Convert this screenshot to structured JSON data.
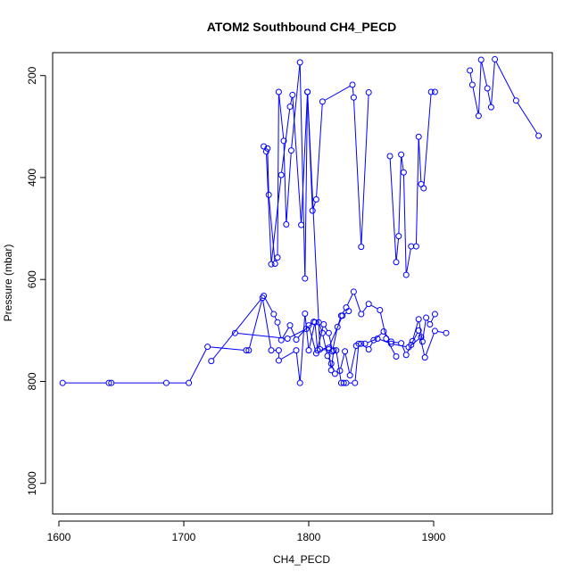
{
  "chart_data": {
    "type": "line",
    "title": "ATOM2 Southbound CH4_PECD",
    "xlabel": "CH4_PECD",
    "ylabel": "Pressure (mbar)",
    "xlim": [
      1595,
      1995
    ],
    "ylim": [
      1060,
      155
    ],
    "y_reversed": true,
    "x_ticks": [
      1600,
      1700,
      1800,
      1900
    ],
    "y_ticks": [
      200,
      400,
      600,
      800,
      1000
    ],
    "grid": false,
    "legend": "none",
    "colors": {
      "series": "#0000ff"
    },
    "marker": "open-circle",
    "series": [
      {
        "x": [
          1603,
          1640,
          1642,
          1686,
          1704,
          1719,
          1750,
          1752,
          1763,
          1770,
          1776,
          1776,
          1790,
          1793,
          1797,
          1800,
          1805,
          1807,
          1816,
          1818,
          1820,
          1822,
          1826,
          1828,
          1830,
          1837,
          1840,
          1845,
          1855,
          1866,
          1880,
          1890
        ],
        "y": [
          803,
          803,
          803,
          803,
          803,
          732,
          739,
          739,
          636,
          739,
          739,
          759,
          739,
          803,
          667,
          739,
          684,
          739,
          737,
          778,
          739,
          739,
          803,
          803,
          803,
          803,
          726,
          726,
          716,
          726,
          733,
          713
        ]
      },
      {
        "x": [
          1722,
          1764,
          1772,
          1775,
          1778,
          1785,
          1790,
          1800,
          1806,
          1812,
          1816,
          1819,
          1823,
          1826,
          1830,
          1836,
          1842,
          1848,
          1857,
          1862,
          1870
        ],
        "y": [
          760,
          632,
          668,
          684,
          719,
          690,
          718,
          690,
          745,
          688,
          705,
          741,
          693,
          671,
          655,
          624,
          668,
          648,
          660,
          716,
          751
        ]
      },
      {
        "x": [
          1741,
          1783,
          1798,
          1804,
          1808,
          1811,
          1815,
          1818,
          1821,
          1825,
          1829,
          1833,
          1838,
          1842,
          1848,
          1852,
          1860,
          1866,
          1874,
          1878,
          1882,
          1888,
          1893,
          1901,
          1910
        ],
        "y": [
          705,
          716,
          697,
          683,
          684,
          705,
          750,
          765,
          785,
          779,
          741,
          788,
          730,
          726,
          737,
          719,
          702,
          722,
          725,
          748,
          728,
          700,
          753,
          701,
          705
        ]
      },
      {
        "x": [
          1767,
          1768,
          1773,
          1775,
          1776,
          1780,
          1782,
          1786,
          1793,
          1797,
          1799,
          1803,
          1806,
          1811,
          1835,
          1836,
          1842,
          1848
        ],
        "y": [
          343,
          434,
          569,
          557,
          232,
          328,
          492,
          347,
          174,
          598,
          232,
          465,
          443,
          251,
          218,
          243,
          536,
          233
        ]
      },
      {
        "x": [
          1764,
          1766,
          1770,
          1778,
          1785,
          1787,
          1794,
          1799,
          1809,
          1816,
          1827,
          1832
        ],
        "y": [
          339,
          349,
          570,
          395,
          261,
          238,
          493,
          232,
          737,
          734,
          671,
          662
        ]
      },
      {
        "x": [
          1865,
          1870,
          1872,
          1874,
          1876,
          1878,
          1882,
          1886,
          1888,
          1890,
          1892,
          1898,
          1901
        ],
        "y": [
          358,
          566,
          515,
          355,
          390,
          591,
          535,
          535,
          320,
          413,
          421,
          232,
          232
        ]
      },
      {
        "x": [
          1929,
          1931,
          1936,
          1938,
          1943,
          1946,
          1949,
          1966,
          1984
        ],
        "y": [
          190,
          218,
          279,
          169,
          225,
          262,
          168,
          249,
          318
        ]
      },
      {
        "x": [
          1883,
          1888,
          1891,
          1894,
          1897,
          1901
        ],
        "y": [
          721,
          678,
          722,
          675,
          688,
          668
        ]
      }
    ]
  }
}
